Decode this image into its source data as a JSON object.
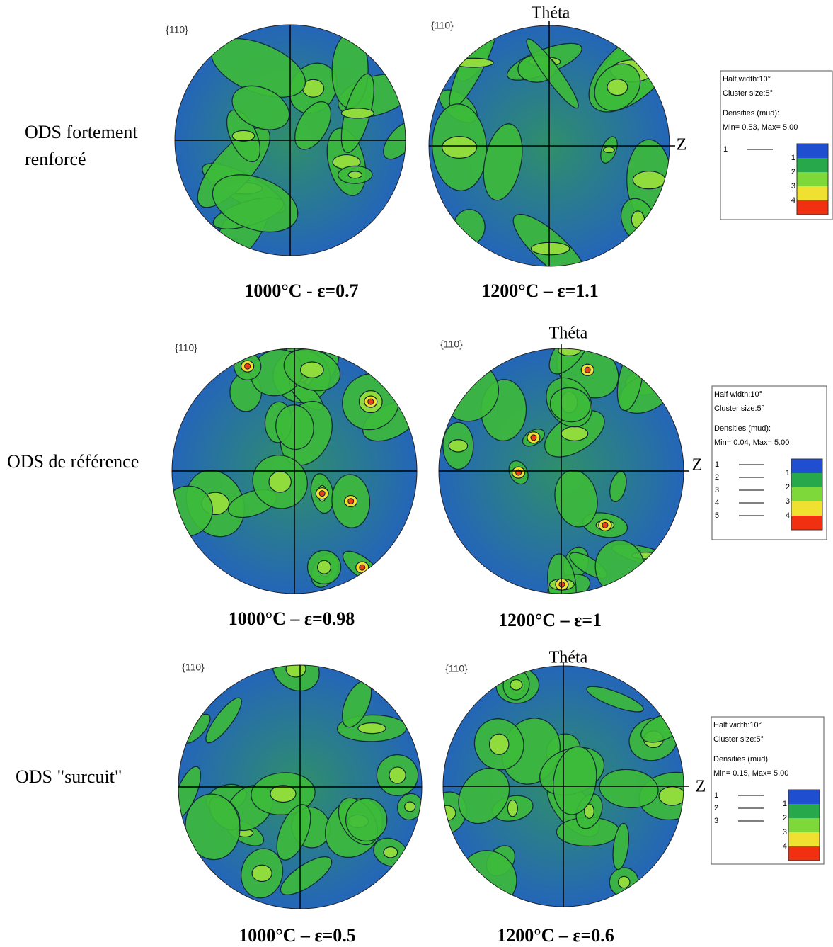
{
  "rows": [
    {
      "label": [
        "ODS fortement",
        "renforcé"
      ],
      "panels": [
        {
          "pole": "{110}",
          "caption": "1000°C - ε=0.7"
        },
        {
          "pole": "{110}",
          "theta": "Théta",
          "z": "Z",
          "caption": "1200°C – ε=1.1"
        }
      ],
      "legend": {
        "half_width": "Half width:10°",
        "cluster_size": "Cluster size:5°",
        "densities": "Densities (mud):",
        "minmax": "Min= 0.53, Max= 5.00",
        "levels": [
          "1"
        ],
        "scale": [
          "1",
          "2",
          "3",
          "4"
        ]
      }
    },
    {
      "label": [
        "ODS de référence"
      ],
      "panels": [
        {
          "pole": "{110}",
          "caption": "1000°C – ε=0.98"
        },
        {
          "pole": "{110}",
          "theta": "Théta",
          "z": "Z",
          "caption": "1200°C – ε=1"
        }
      ],
      "legend": {
        "half_width": "Half width:10°",
        "cluster_size": "Cluster size:5°",
        "densities": "Densities (mud):",
        "minmax": "Min= 0.04, Max= 5.00",
        "levels": [
          "1",
          "2",
          "3",
          "4",
          "5"
        ],
        "scale": [
          "1",
          "2",
          "3",
          "4"
        ]
      }
    },
    {
      "label": [
        "ODS \"surcuit\""
      ],
      "panels": [
        {
          "pole": "{110}",
          "caption": "1000°C – ε=0.5"
        },
        {
          "pole": "{110}",
          "theta": "Théta",
          "z": "Z",
          "caption": "1200°C – ε=0.6"
        }
      ],
      "legend": {
        "half_width": "Half width:10°",
        "cluster_size": "Cluster size:5°",
        "densities": "Densities (mud):",
        "minmax": "Min= 0.15, Max= 5.00",
        "levels": [
          "1",
          "2",
          "3"
        ],
        "scale": [
          "1",
          "2",
          "3",
          "4"
        ]
      }
    }
  ]
}
